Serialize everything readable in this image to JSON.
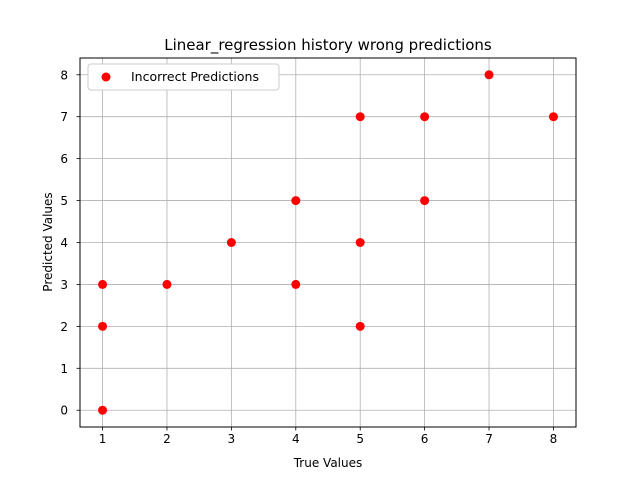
{
  "chart_data": {
    "type": "scatter",
    "title": "Linear_regression history wrong predictions",
    "xlabel": "True Values",
    "ylabel": "Predicted Values",
    "xlim": [
      0.65,
      8.35
    ],
    "ylim": [
      -0.4,
      8.4
    ],
    "xticks": [
      1,
      2,
      3,
      4,
      5,
      6,
      7,
      8
    ],
    "yticks": [
      0,
      1,
      2,
      3,
      4,
      5,
      6,
      7,
      8
    ],
    "grid": true,
    "legend_position": "top-left",
    "series": [
      {
        "name": "Incorrect Predictions",
        "color": "#ff0000",
        "points": [
          {
            "x": 1,
            "y": 0
          },
          {
            "x": 1,
            "y": 2
          },
          {
            "x": 1,
            "y": 3
          },
          {
            "x": 2,
            "y": 3
          },
          {
            "x": 3,
            "y": 4
          },
          {
            "x": 4,
            "y": 3
          },
          {
            "x": 4,
            "y": 5
          },
          {
            "x": 5,
            "y": 2
          },
          {
            "x": 5,
            "y": 4
          },
          {
            "x": 5,
            "y": 7
          },
          {
            "x": 6,
            "y": 5
          },
          {
            "x": 6,
            "y": 7
          },
          {
            "x": 7,
            "y": 8
          },
          {
            "x": 8,
            "y": 7
          }
        ]
      }
    ]
  }
}
